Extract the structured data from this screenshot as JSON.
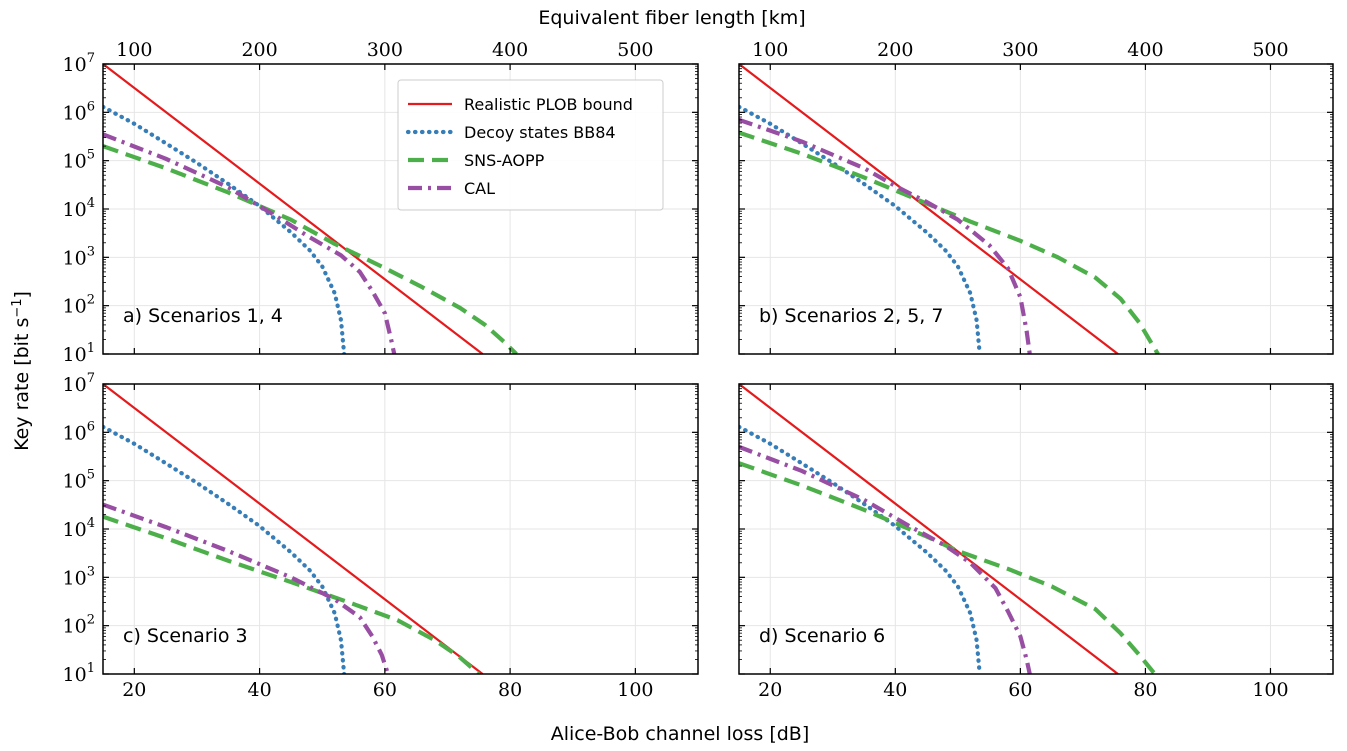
{
  "figure": {
    "xlabel": "Alice-Bob channel loss [dB]",
    "ylabel": "Key rate [bit s",
    "ylabel_sup": "−1",
    "ylabel_end": "]",
    "top_xlabel": "Equivalent fiber length [km]"
  },
  "colors": {
    "plob": "#e41a1c",
    "bb84": "#377eb8",
    "sns": "#4daf4a",
    "cal": "#984ea3",
    "grid": "#e6e6e6"
  },
  "chart_data": [
    {
      "type": "line",
      "panel_label": "a) Scenarios 1, 4",
      "x_axis": {
        "label": "Alice-Bob channel loss [dB]",
        "range": [
          15,
          110
        ],
        "ticks": [
          20,
          40,
          60,
          80,
          100
        ]
      },
      "top_axis": {
        "label": "Equivalent fiber length [km]",
        "ticks": [
          100,
          200,
          300,
          400,
          500
        ],
        "tick_positions_db": [
          20,
          40,
          60,
          80,
          100
        ]
      },
      "y_axis": {
        "label": "Key rate [bit s^-1]",
        "scale": "log",
        "range": [
          10,
          10000000
        ],
        "ticks": [
          10,
          100,
          1000,
          10000,
          100000,
          1000000,
          10000000
        ]
      },
      "grid": true,
      "legend": {
        "placement": "top-center"
      },
      "series": [
        {
          "name": "Realistic PLOB bound",
          "key": "plob",
          "style": "solid",
          "x": [
            15,
            75.6
          ],
          "y": [
            10000000,
            10
          ]
        },
        {
          "name": "Decoy states BB84",
          "key": "bb84",
          "style": "dotted",
          "x": [
            15,
            20,
            25,
            30,
            35,
            40,
            45,
            48,
            50,
            52,
            53,
            53.5
          ],
          "y": [
            1300000,
            580000,
            230000,
            90000,
            33000,
            11500,
            3300,
            1400,
            650,
            180,
            50,
            10
          ]
        },
        {
          "name": "SNS-AOPP",
          "key": "sns",
          "style": "dashed",
          "x": [
            15,
            25,
            35,
            45,
            52,
            60,
            66,
            72,
            76,
            79,
            81
          ],
          "y": [
            200000,
            70000,
            22000,
            6000,
            1900,
            600,
            240,
            90,
            40,
            18,
            10
          ]
        },
        {
          "name": "CAL",
          "key": "cal",
          "style": "dashdot",
          "x": [
            15,
            25,
            35,
            42,
            48,
            53,
            56,
            58,
            60,
            61,
            61.5
          ],
          "y": [
            350000,
            110000,
            28000,
            8000,
            2600,
            1100,
            500,
            200,
            70,
            20,
            10
          ]
        }
      ]
    },
    {
      "type": "line",
      "panel_label": "b) Scenarios 2, 5, 7",
      "x_axis": {
        "label": "Alice-Bob channel loss [dB]",
        "range": [
          15,
          110
        ],
        "ticks": [
          20,
          40,
          60,
          80,
          100
        ]
      },
      "top_axis": {
        "label": "Equivalent fiber length [km]",
        "ticks": [
          100,
          200,
          300,
          400,
          500
        ],
        "tick_positions_db": [
          20,
          40,
          60,
          80,
          100
        ]
      },
      "y_axis": {
        "label": "Key rate [bit s^-1]",
        "scale": "log",
        "range": [
          10,
          10000000
        ],
        "ticks": [
          10,
          100,
          1000,
          10000,
          100000,
          1000000,
          10000000
        ]
      },
      "grid": true,
      "series": [
        {
          "name": "Realistic PLOB bound",
          "key": "plob",
          "style": "solid",
          "x": [
            15,
            75.6
          ],
          "y": [
            10000000,
            10
          ]
        },
        {
          "name": "Decoy states BB84",
          "key": "bb84",
          "style": "dotted",
          "x": [
            15,
            20,
            25,
            30,
            35,
            40,
            45,
            48,
            50,
            52,
            53,
            53.5
          ],
          "y": [
            1300000,
            580000,
            230000,
            90000,
            33000,
            11500,
            3300,
            1400,
            650,
            180,
            50,
            10
          ]
        },
        {
          "name": "SNS-AOPP",
          "key": "sns",
          "style": "dashed",
          "x": [
            15,
            25,
            35,
            45,
            52,
            60,
            66,
            72,
            76,
            79,
            82
          ],
          "y": [
            380000,
            140000,
            45000,
            13000,
            5500,
            2200,
            1000,
            380,
            140,
            45,
            10
          ]
        },
        {
          "name": "CAL",
          "key": "cal",
          "style": "dashdot",
          "x": [
            15,
            25,
            35,
            40,
            45,
            50,
            55,
            58,
            60,
            61,
            61.5
          ],
          "y": [
            700000,
            250000,
            70000,
            30000,
            14000,
            6000,
            1800,
            600,
            150,
            30,
            10
          ]
        }
      ]
    },
    {
      "type": "line",
      "panel_label": "c) Scenario 3",
      "x_axis": {
        "label": "Alice-Bob channel loss [dB]",
        "range": [
          15,
          110
        ],
        "ticks": [
          20,
          40,
          60,
          80,
          100
        ]
      },
      "y_axis": {
        "label": "Key rate [bit s^-1]",
        "scale": "log",
        "range": [
          10,
          10000000
        ],
        "ticks": [
          10,
          100,
          1000,
          10000,
          100000,
          1000000,
          10000000
        ]
      },
      "grid": true,
      "series": [
        {
          "name": "Realistic PLOB bound",
          "key": "plob",
          "style": "solid",
          "x": [
            15,
            75.6
          ],
          "y": [
            10000000,
            10
          ]
        },
        {
          "name": "Decoy states BB84",
          "key": "bb84",
          "style": "dotted",
          "x": [
            15,
            20,
            25,
            30,
            35,
            40,
            45,
            48,
            50,
            52,
            53,
            53.5
          ],
          "y": [
            1300000,
            580000,
            230000,
            90000,
            33000,
            11500,
            3300,
            1400,
            650,
            180,
            50,
            10
          ]
        },
        {
          "name": "SNS-AOPP",
          "key": "sns",
          "style": "dashed",
          "x": [
            15,
            25,
            35,
            45,
            55,
            62,
            68,
            72,
            75
          ],
          "y": [
            18000,
            6500,
            2200,
            800,
            280,
            130,
            50,
            22,
            10
          ]
        },
        {
          "name": "CAL",
          "key": "cal",
          "style": "dashdot",
          "x": [
            15,
            25,
            35,
            45,
            52,
            56,
            58,
            59.5,
            60.5
          ],
          "y": [
            32000,
            11000,
            3500,
            1000,
            350,
            150,
            60,
            25,
            10
          ]
        }
      ]
    },
    {
      "type": "line",
      "panel_label": "d) Scenario 6",
      "x_axis": {
        "label": "Alice-Bob channel loss [dB]",
        "range": [
          15,
          110
        ],
        "ticks": [
          20,
          40,
          60,
          80,
          100
        ]
      },
      "y_axis": {
        "label": "Key rate [bit s^-1]",
        "scale": "log",
        "range": [
          10,
          10000000
        ],
        "ticks": [
          10,
          100,
          1000,
          10000,
          100000,
          1000000,
          10000000
        ]
      },
      "grid": true,
      "series": [
        {
          "name": "Realistic PLOB bound",
          "key": "plob",
          "style": "solid",
          "x": [
            15,
            75.6
          ],
          "y": [
            10000000,
            10
          ]
        },
        {
          "name": "Decoy states BB84",
          "key": "bb84",
          "style": "dotted",
          "x": [
            15,
            20,
            25,
            30,
            35,
            40,
            45,
            48,
            50,
            52,
            53,
            53.5
          ],
          "y": [
            1300000,
            580000,
            230000,
            90000,
            33000,
            11500,
            3300,
            1400,
            650,
            180,
            50,
            10
          ]
        },
        {
          "name": "SNS-AOPP",
          "key": "sns",
          "style": "dashed",
          "x": [
            15,
            25,
            35,
            45,
            50,
            58,
            65,
            72,
            76,
            79,
            81.5
          ],
          "y": [
            230000,
            80000,
            25000,
            7000,
            3500,
            1500,
            650,
            220,
            70,
            25,
            10
          ]
        },
        {
          "name": "CAL",
          "key": "cal",
          "style": "dashdot",
          "x": [
            15,
            25,
            35,
            42,
            48,
            52,
            56,
            58,
            60,
            61,
            61.5
          ],
          "y": [
            500000,
            160000,
            40000,
            12000,
            4500,
            2000,
            600,
            200,
            60,
            20,
            10
          ]
        }
      ]
    }
  ]
}
